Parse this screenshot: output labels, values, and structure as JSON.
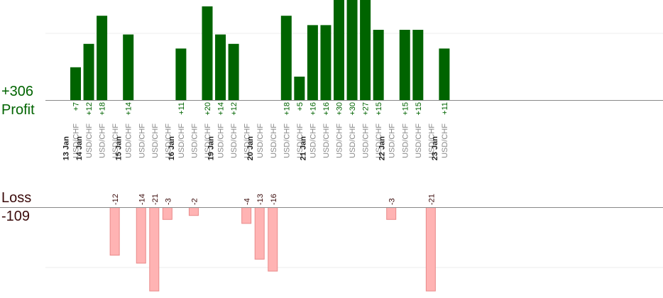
{
  "summary": {
    "profit_total": "+306",
    "profit_label": "Profit",
    "loss_label": "Loss",
    "loss_total": "-109"
  },
  "colors": {
    "profit_bar": "#006400",
    "profit_text": "#006400",
    "loss_bar": "#ffb3b3",
    "loss_bar_border": "#e98a8a",
    "loss_text": "#3a0a0a",
    "axis": "#888888",
    "grid": "#eeeeee",
    "pair_text": "#888888",
    "date_text": "#222222"
  },
  "chart_data": {
    "type": "bar",
    "ylim_profit": [
      0,
      30
    ],
    "ylim_loss": [
      -21,
      0
    ],
    "grid": true,
    "trades": [
      {
        "date": "13 Jan",
        "pair": "USD/CHF",
        "value": 7,
        "label": "+7"
      },
      {
        "date": "14 Jan",
        "pair": "USD/CHF",
        "value": 12,
        "label": "+12"
      },
      {
        "date": "",
        "pair": "USD/CHF",
        "value": 18,
        "label": "+18"
      },
      {
        "date": "",
        "pair": "USD/CHF",
        "value": -12,
        "label": "-12"
      },
      {
        "date": "15 Jan",
        "pair": "USD/CHF",
        "value": 14,
        "label": "+14"
      },
      {
        "date": "",
        "pair": "USD/CHF",
        "value": -14,
        "label": "-14"
      },
      {
        "date": "",
        "pair": "USD/CHF",
        "value": -21,
        "label": "-21"
      },
      {
        "date": "",
        "pair": "USD/CHF",
        "value": -3,
        "label": "-3"
      },
      {
        "date": "16 Jan",
        "pair": "USD/CHF",
        "value": 11,
        "label": "+11"
      },
      {
        "date": "",
        "pair": "USD/CHF",
        "value": -2,
        "label": "-2"
      },
      {
        "date": "",
        "pair": "USD/CHF",
        "value": 20,
        "label": "+20"
      },
      {
        "date": "19 Jan",
        "pair": "USD/CHF",
        "value": 14,
        "label": "+14"
      },
      {
        "date": "",
        "pair": "USD/CHF",
        "value": 12,
        "label": "+12"
      },
      {
        "date": "",
        "pair": "USD/CHF",
        "value": -4,
        "label": "-4"
      },
      {
        "date": "20 Jan",
        "pair": "USD/CHF",
        "value": -13,
        "label": "-13"
      },
      {
        "date": "",
        "pair": "USD/CHF",
        "value": -16,
        "label": "-16"
      },
      {
        "date": "",
        "pair": "USD/CHF",
        "value": 18,
        "label": "+18"
      },
      {
        "date": "",
        "pair": "USD/CHF",
        "value": 5,
        "label": "+5"
      },
      {
        "date": "21 Jan",
        "pair": "USD/CHF",
        "value": 16,
        "label": "+16"
      },
      {
        "date": "",
        "pair": "USD/CHF",
        "value": 16,
        "label": "+16"
      },
      {
        "date": "",
        "pair": "USD/CHF",
        "value": 30,
        "label": "+30"
      },
      {
        "date": "",
        "pair": "USD/CHF",
        "value": 30,
        "label": "+30"
      },
      {
        "date": "",
        "pair": "USD/CHF",
        "value": 27,
        "label": "+27"
      },
      {
        "date": "",
        "pair": "USD/CHF",
        "value": 15,
        "label": "+15"
      },
      {
        "date": "22 Jan",
        "pair": "USD/CHF",
        "value": -3,
        "label": "-3"
      },
      {
        "date": "",
        "pair": "USD/CHF",
        "value": 15,
        "label": "+15"
      },
      {
        "date": "",
        "pair": "USD/CHF",
        "value": 15,
        "label": "+15"
      },
      {
        "date": "",
        "pair": "USD/CHF",
        "value": -21,
        "label": "-21"
      },
      {
        "date": "23 Jan",
        "pair": "USD/CHF",
        "value": 11,
        "label": "+11"
      }
    ]
  }
}
